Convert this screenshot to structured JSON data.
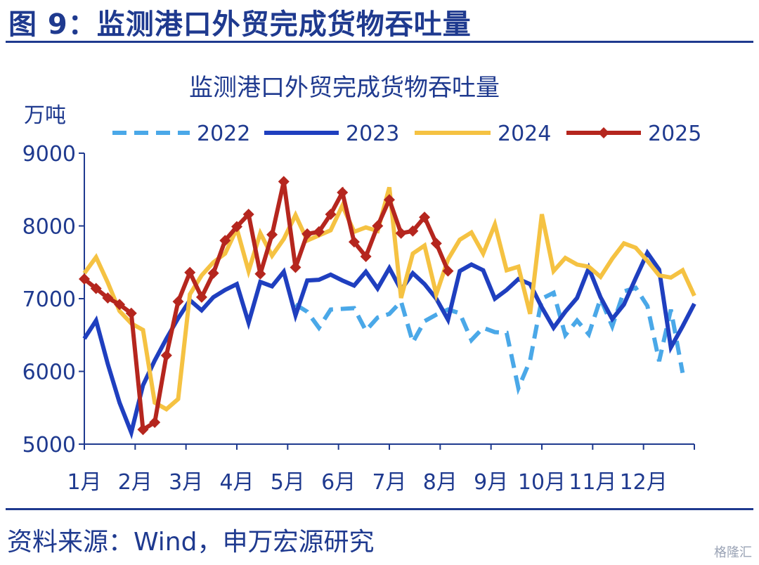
{
  "figure": {
    "title": "图 9：监测港口外贸完成货物吞吐量",
    "source": "资料来源：Wind，申万宏源研究",
    "watermark": "格隆汇"
  },
  "colors": {
    "2022": "#4aa8e8",
    "2023": "#1f3fbf",
    "2024": "#f5c242",
    "2025": "#b5261e",
    "axis": "#1f3a8f"
  },
  "chart_data": {
    "type": "line",
    "title": "监测港口外贸完成货物吞吐量",
    "ylabel": "万吨",
    "xlabel": "",
    "ylim": [
      5000,
      9000
    ],
    "yticks": [
      5000,
      6000,
      7000,
      8000,
      9000
    ],
    "x_tick_labels": [
      "1月",
      "2月",
      "3月",
      "4月",
      "5月",
      "6月",
      "7月",
      "8月",
      "9月",
      "10月",
      "11月",
      "12月"
    ],
    "x_unit": "week",
    "x_range": [
      1,
      53
    ],
    "legend_position": "top",
    "grid": false,
    "series": [
      {
        "name": "2022",
        "style": "dashed",
        "marker": "none",
        "x": [
          19,
          20,
          21,
          22,
          23,
          24,
          25,
          26,
          27,
          28,
          29,
          30,
          31,
          32,
          33,
          34,
          35,
          36,
          37,
          38,
          39,
          40,
          41,
          42,
          43,
          44,
          45,
          46,
          47,
          48,
          49,
          50,
          51,
          52
        ],
        "values": [
          6920,
          6820,
          6600,
          6850,
          6860,
          6870,
          6560,
          6740,
          6790,
          6960,
          6400,
          6690,
          6780,
          6850,
          6800,
          6430,
          6600,
          6540,
          6530,
          5770,
          6150,
          7000,
          7080,
          6500,
          6700,
          6510,
          7000,
          6620,
          7100,
          7150,
          6900,
          6140,
          6850,
          5980
        ]
      },
      {
        "name": "2023",
        "style": "solid",
        "marker": "none",
        "x": [
          1,
          2,
          3,
          4,
          5,
          6,
          7,
          8,
          9,
          10,
          11,
          12,
          13,
          14,
          15,
          16,
          17,
          18,
          19,
          20,
          21,
          22,
          23,
          24,
          25,
          26,
          27,
          28,
          29,
          30,
          31,
          32,
          33,
          34,
          35,
          36,
          37,
          38,
          39,
          40,
          41,
          42,
          43,
          44,
          45,
          46,
          47,
          48,
          49,
          50,
          51,
          52,
          53
        ],
        "values": [
          6450,
          6700,
          6100,
          5570,
          5160,
          5810,
          6150,
          6450,
          6730,
          6980,
          6840,
          7020,
          7120,
          7200,
          6670,
          7230,
          7170,
          7370,
          6770,
          7250,
          7260,
          7330,
          7250,
          7180,
          7370,
          7140,
          7420,
          7120,
          7350,
          7200,
          7000,
          6710,
          7380,
          7470,
          7390,
          7000,
          7120,
          7270,
          7200,
          6880,
          6600,
          6820,
          7010,
          7420,
          7020,
          6720,
          6920,
          7280,
          7630,
          7400,
          6330,
          6620,
          6930
        ]
      },
      {
        "name": "2024",
        "style": "solid",
        "marker": "none",
        "x": [
          1,
          2,
          3,
          4,
          5,
          6,
          7,
          8,
          9,
          10,
          11,
          12,
          13,
          14,
          15,
          16,
          17,
          18,
          19,
          20,
          21,
          22,
          23,
          24,
          25,
          26,
          27,
          28,
          29,
          30,
          31,
          32,
          33,
          34,
          35,
          36,
          37,
          38,
          39,
          40,
          41,
          42,
          43,
          44,
          45,
          46,
          47,
          48,
          49,
          50,
          51,
          52,
          53
        ],
        "values": [
          7350,
          7570,
          7220,
          6830,
          6660,
          6570,
          5570,
          5480,
          5620,
          7060,
          7320,
          7500,
          7620,
          7960,
          7380,
          7900,
          7590,
          7820,
          8150,
          7800,
          7870,
          7940,
          8280,
          7920,
          7980,
          7930,
          8530,
          7010,
          7620,
          7730,
          7060,
          7540,
          7810,
          7910,
          7620,
          8020,
          7390,
          7440,
          6790,
          8160,
          7380,
          7560,
          7470,
          7440,
          7300,
          7550,
          7760,
          7700,
          7520,
          7320,
          7290,
          7390,
          7040
        ]
      },
      {
        "name": "2025",
        "style": "solid",
        "marker": "diamond",
        "x": [
          1,
          2,
          3,
          4,
          5,
          6,
          7,
          8,
          9,
          10,
          11,
          12,
          13,
          14,
          15,
          16,
          17,
          18,
          19,
          20,
          21,
          22,
          23,
          24,
          25,
          26,
          27,
          28,
          29,
          30,
          31,
          32,
          33
        ],
        "values": [
          7270,
          7140,
          7010,
          6920,
          6800,
          5200,
          5300,
          6220,
          6960,
          7360,
          7020,
          7350,
          7800,
          7990,
          8160,
          7340,
          7880,
          8610,
          7430,
          7890,
          7920,
          8160,
          8460,
          7780,
          7580,
          8000,
          8360,
          7900,
          7930,
          8120,
          7760,
          7380,
          null
        ]
      }
    ]
  }
}
